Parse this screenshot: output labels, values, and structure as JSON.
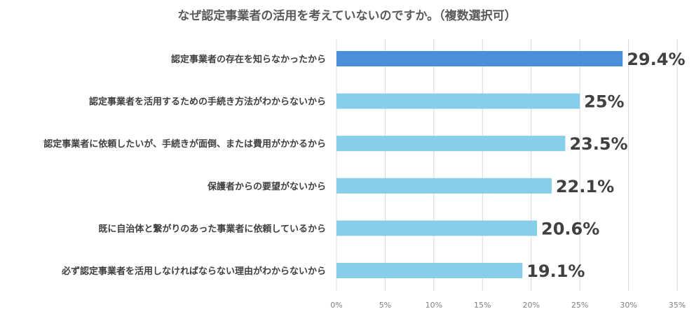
{
  "chart_data": {
    "type": "bar",
    "orientation": "horizontal",
    "title": "なぜ認定事業者の活用を考えていないのですか。（複数選択可）",
    "categories": [
      "認定事業者の存在を知らなかったから",
      "認定事業者を活用するための手続き方法がわからないから",
      "認定事業者に依頼したいが、手続きが面倒、または費用がかかるから",
      "保護者からの要望がないから",
      "既に自治体と繋がりのあった事業者に依頼しているから",
      "必ず認定事業者を活用しなければならない理由がわからないから"
    ],
    "values": [
      29.4,
      25,
      23.5,
      22.1,
      20.6,
      19.1
    ],
    "value_labels": [
      "29.4%",
      "25%",
      "23.5%",
      "22.1%",
      "20.6%",
      "19.1%"
    ],
    "x_ticks": [
      0,
      5,
      10,
      15,
      20,
      25,
      30,
      35
    ],
    "x_tick_labels": [
      "0%",
      "5%",
      "10%",
      "15%",
      "20%",
      "25%",
      "30%",
      "35%"
    ],
    "xlim": [
      0,
      35
    ],
    "grid": "vertical",
    "colors": {
      "highlight": "#4a90d9",
      "bar": "#87ceeb",
      "grid": "#d9d9d9"
    },
    "highlight_index": 0
  }
}
